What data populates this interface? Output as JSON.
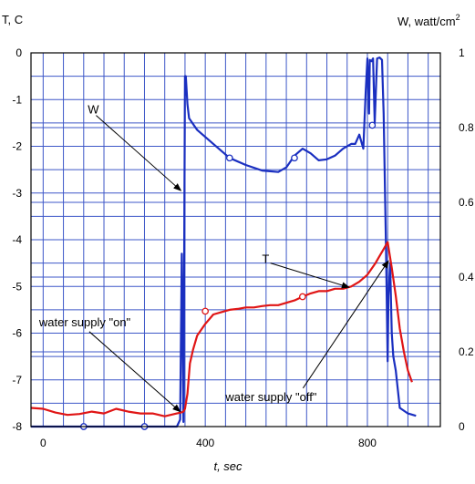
{
  "chart_data": {
    "type": "line",
    "title": "",
    "xlabel": "t, sec",
    "ylabel_left": "T, C",
    "ylabel_right": "W, watt/cm",
    "ylabel_right_sup": "2",
    "xlim": [
      -30,
      980
    ],
    "ylim_left": [
      -8,
      0
    ],
    "ylim_right": [
      0,
      1
    ],
    "grid": true,
    "x_ticks": [
      {
        "v": 0,
        "label": "0"
      },
      {
        "v": 400,
        "label": "400"
      },
      {
        "v": 800,
        "label": "800"
      }
    ],
    "y_left_ticks": [
      {
        "v": 0,
        "label": "0"
      },
      {
        "v": -1,
        "label": "-1"
      },
      {
        "v": -2,
        "label": "-2"
      },
      {
        "v": -3,
        "label": "-3"
      },
      {
        "v": -4,
        "label": "-4"
      },
      {
        "v": -5,
        "label": "-5"
      },
      {
        "v": -6,
        "label": "-6"
      },
      {
        "v": -7,
        "label": "-7"
      },
      {
        "v": -8,
        "label": "-8"
      }
    ],
    "y_right_ticks": [
      {
        "v": 0,
        "label": "0"
      },
      {
        "v": 0.2,
        "label": "0.2"
      },
      {
        "v": 0.4,
        "label": "0.4"
      },
      {
        "v": 0.6,
        "label": "0.6"
      },
      {
        "v": 0.8,
        "label": "0.8"
      },
      {
        "v": 1,
        "label": "1"
      }
    ],
    "series": [
      {
        "name": "",
        "axis": "left",
        "color": "#1a2fc0",
        "x": [
          -30,
          100,
          250,
          300,
          330,
          338,
          342,
          346,
          350,
          352,
          356,
          360,
          380,
          420,
          460,
          500,
          540,
          580,
          600,
          620,
          640,
          660,
          680,
          700,
          720,
          740,
          760,
          770,
          780,
          790,
          796,
          800,
          804,
          806,
          810,
          814,
          818,
          824,
          830,
          836,
          840,
          846,
          850,
          852,
          856,
          860,
          864,
          870,
          880,
          900,
          920
        ],
        "y": [
          -8,
          -8,
          -8,
          -8,
          -8,
          -7.85,
          -4.3,
          -7.9,
          -0.5,
          -0.5,
          -1.1,
          -1.4,
          -1.65,
          -1.95,
          -2.25,
          -2.4,
          -2.52,
          -2.55,
          -2.45,
          -2.2,
          -2.05,
          -2.15,
          -2.3,
          -2.28,
          -2.2,
          -2.05,
          -1.95,
          -1.95,
          -1.75,
          -2.05,
          -0.8,
          -0.12,
          -1.3,
          -0.15,
          -0.18,
          -0.12,
          -1.5,
          -0.12,
          -0.1,
          -0.15,
          -1.3,
          -4.2,
          -6.6,
          -5.2,
          -4.5,
          -6.0,
          -6.5,
          -6.8,
          -7.6,
          -7.72,
          -7.77
        ],
        "markers_x": [
          100,
          250,
          460,
          620,
          812
        ],
        "markers_y": [
          -8,
          -8,
          -2.25,
          -2.25,
          -1.55
        ]
      },
      {
        "name": "",
        "axis": "left",
        "color": "#e01515",
        "x": [
          -30,
          0,
          30,
          60,
          90,
          120,
          150,
          180,
          210,
          240,
          270,
          300,
          330,
          340,
          346,
          350,
          356,
          362,
          370,
          380,
          400,
          420,
          440,
          460,
          480,
          500,
          520,
          540,
          560,
          580,
          600,
          620,
          640,
          660,
          680,
          700,
          720,
          740,
          760,
          780,
          800,
          820,
          830,
          840,
          850,
          860,
          870,
          880,
          890,
          900,
          910
        ],
        "y": [
          -7.6,
          -7.62,
          -7.7,
          -7.75,
          -7.73,
          -7.68,
          -7.72,
          -7.62,
          -7.68,
          -7.72,
          -7.72,
          -7.78,
          -7.72,
          -7.7,
          -7.68,
          -7.62,
          -7.3,
          -6.65,
          -6.35,
          -6.05,
          -5.8,
          -5.6,
          -5.55,
          -5.5,
          -5.48,
          -5.45,
          -5.45,
          -5.42,
          -5.4,
          -5.4,
          -5.35,
          -5.3,
          -5.22,
          -5.15,
          -5.1,
          -5.1,
          -5.05,
          -5.05,
          -5.0,
          -4.9,
          -4.75,
          -4.5,
          -4.35,
          -4.2,
          -4.05,
          -4.6,
          -5.2,
          -5.9,
          -6.4,
          -6.8,
          -7.05
        ],
        "markers_x": [
          400,
          640
        ],
        "markers_y": [
          -5.53,
          -5.22
        ]
      }
    ],
    "annotations": [
      {
        "text": "W",
        "x": 110,
        "y": -1.3,
        "arrow_to_x": 340,
        "arrow_to_y": -2.95
      },
      {
        "text": "T",
        "x": 540,
        "y": -4.5,
        "arrow_to_x": 755,
        "arrow_to_y": -5.02
      },
      {
        "text": "water supply \"on\"",
        "x": -10,
        "y": -5.85,
        "arrow_to_x": 338,
        "arrow_to_y": -7.68
      },
      {
        "text": "water supply \"off\"",
        "x": 450,
        "y": -7.45,
        "arrow_to_x": 852,
        "arrow_to_y": -4.45
      }
    ]
  }
}
